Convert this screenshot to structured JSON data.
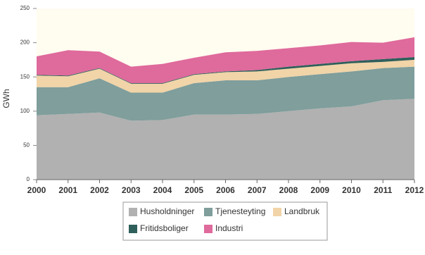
{
  "chart_data": {
    "type": "stacked-area",
    "y_label": "GWh",
    "categories": [
      "2000",
      "2001",
      "2002",
      "2003",
      "2004",
      "2005",
      "2006",
      "2007",
      "2008",
      "2009",
      "2010",
      "2011",
      "2012"
    ],
    "series": [
      {
        "name": "Husholdninger",
        "color": "#b1b1b1",
        "values": [
          94,
          96,
          98,
          86,
          87,
          95,
          95,
          96,
          100,
          104,
          107,
          116,
          118
        ]
      },
      {
        "name": "Tjenesteyting",
        "color": "#7f9e9c",
        "values": [
          41,
          39,
          50,
          41,
          40,
          46,
          50,
          49,
          50,
          50,
          51,
          47,
          47
        ]
      },
      {
        "name": "Landbruk",
        "color": "#f1d4a8",
        "values": [
          17,
          16,
          14,
          13,
          13,
          12,
          12,
          13,
          12,
          12,
          12,
          9,
          10
        ]
      },
      {
        "name": "Fritidsboliger",
        "color": "#2f5f5b",
        "values": [
          1,
          1,
          1,
          1,
          1,
          1,
          1,
          2,
          3,
          3,
          3,
          4,
          4
        ]
      },
      {
        "name": "Industri",
        "color": "#df6a9c",
        "values": [
          27,
          37,
          24,
          24,
          28,
          24,
          28,
          28,
          27,
          27,
          28,
          24,
          29
        ]
      }
    ],
    "ylim": [
      0,
      250
    ],
    "yticks": [
      0,
      50,
      100,
      150,
      200,
      250
    ]
  }
}
